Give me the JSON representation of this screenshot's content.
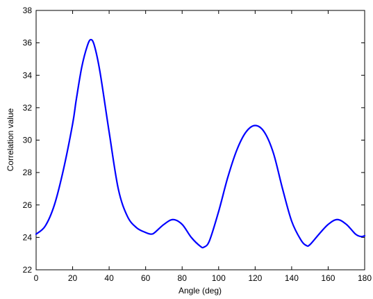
{
  "chart_data": {
    "type": "line",
    "title": "",
    "xlabel": "Angle (deg)",
    "ylabel": "Correlation value",
    "xlim": [
      0,
      180
    ],
    "ylim": [
      22,
      38
    ],
    "xticks": [
      0,
      20,
      40,
      60,
      80,
      100,
      120,
      140,
      160,
      180
    ],
    "yticks": [
      22,
      24,
      26,
      28,
      30,
      32,
      34,
      36,
      38
    ],
    "grid": false,
    "series_color": "#0000ff",
    "series": [
      {
        "x": [
          0,
          5,
          10,
          15,
          20,
          22,
          25,
          28,
          30,
          32,
          35,
          40,
          45,
          50,
          55,
          60,
          63,
          65,
          70,
          75,
          80,
          85,
          90,
          92,
          95,
          100,
          105,
          110,
          115,
          120,
          125,
          130,
          135,
          140,
          145,
          148,
          150,
          155,
          160,
          165,
          170,
          175,
          178,
          180
        ],
        "y": [
          24.2,
          24.7,
          26.0,
          28.2,
          31.0,
          32.5,
          34.5,
          35.8,
          36.2,
          35.8,
          34.2,
          30.5,
          27.0,
          25.3,
          24.6,
          24.3,
          24.2,
          24.3,
          24.8,
          25.1,
          24.8,
          24.0,
          23.45,
          23.4,
          23.8,
          25.6,
          27.7,
          29.4,
          30.5,
          30.9,
          30.5,
          29.2,
          27.0,
          25.0,
          23.85,
          23.5,
          23.55,
          24.2,
          24.8,
          25.1,
          24.8,
          24.2,
          24.05,
          24.1
        ]
      }
    ]
  }
}
